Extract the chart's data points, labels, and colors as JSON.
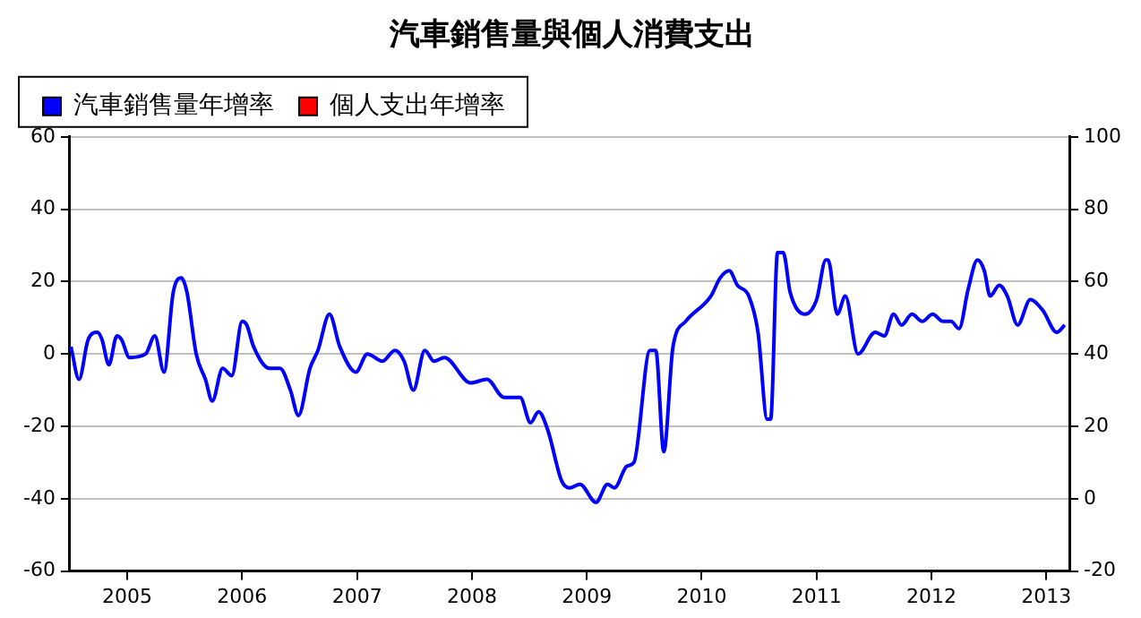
{
  "chart_data": {
    "type": "line",
    "title": "汽車銷售量與個人消費支出",
    "x": [
      2004.51,
      2004.58,
      2004.66,
      2004.74,
      2004.78,
      2004.84,
      2004.91,
      2004.95,
      2005.02,
      2005.16,
      2005.24,
      2005.32,
      2005.4,
      2005.47,
      2005.52,
      2005.6,
      2005.68,
      2005.74,
      2005.83,
      2005.91,
      2006.0,
      2006.04,
      2006.1,
      2006.24,
      2006.33,
      2006.42,
      2006.49,
      2006.59,
      2006.66,
      2006.76,
      2006.85,
      2006.99,
      2007.09,
      2007.22,
      2007.33,
      2007.41,
      2007.49,
      2007.59,
      2007.67,
      2007.76,
      2007.99,
      2008.13,
      2008.28,
      2008.42,
      2008.51,
      2008.58,
      2008.66,
      2008.78,
      2008.85,
      2008.94,
      2009.08,
      2009.18,
      2009.24,
      2009.35,
      2009.41,
      2009.55,
      2009.6,
      2009.67,
      2009.75,
      2009.86,
      2010.08,
      2010.16,
      2010.24,
      2010.31,
      2010.41,
      2010.49,
      2010.57,
      2010.6,
      2010.66,
      2010.71,
      2010.77,
      2010.9,
      2011.0,
      2011.08,
      2011.1,
      2011.18,
      2011.25,
      2011.36,
      2011.51,
      2011.59,
      2011.67,
      2011.74,
      2011.83,
      2011.92,
      2012.01,
      2012.1,
      2012.17,
      2012.24,
      2012.32,
      2012.4,
      2012.46,
      2012.51,
      2012.59,
      2012.66,
      2012.75,
      2012.86,
      2012.97,
      2013.09,
      2013.16
    ],
    "series": [
      {
        "name": "汽車銷售量年增率",
        "color": "#0000ff",
        "values": [
          2,
          -7,
          4,
          6,
          4,
          -3,
          5,
          4,
          -1,
          0,
          5,
          -5,
          17,
          21,
          17,
          0,
          -7,
          -13,
          -4,
          -6,
          9,
          8,
          2,
          -4,
          -4,
          -10,
          -17,
          -4,
          1,
          11,
          2,
          -5,
          0,
          -2,
          1,
          -2,
          -10,
          1,
          -2,
          -1,
          -8,
          -7,
          -12,
          -12,
          -19,
          -16,
          -21,
          -35,
          -37,
          -36,
          -41,
          -36,
          -37,
          -31,
          -30,
          1,
          1,
          -27,
          2,
          9,
          16,
          21,
          23,
          19,
          16,
          6,
          -18,
          -18,
          28,
          28,
          17,
          11,
          15,
          26,
          26,
          11,
          16,
          0,
          6,
          5,
          11,
          8,
          11,
          9,
          11,
          9,
          9,
          7,
          18,
          26,
          23,
          16,
          19,
          16,
          8,
          15,
          12,
          6,
          8
        ]
      },
      {
        "name": "個人支出年增率",
        "color": "#ff0000",
        "values": [
          null,
          null,
          null,
          null,
          null,
          null,
          null,
          null,
          null,
          null,
          null,
          null,
          null,
          null,
          null,
          null,
          null,
          null,
          null,
          null,
          null,
          null,
          null,
          null,
          null,
          null,
          null,
          null,
          null,
          null,
          null,
          null,
          null,
          null,
          null,
          null,
          null,
          null,
          null,
          null,
          null,
          null,
          null,
          null,
          null,
          null,
          null,
          null,
          null,
          null,
          null,
          null,
          null,
          null,
          null,
          null,
          null,
          null,
          null,
          null,
          null,
          null,
          null,
          null,
          null,
          null,
          null,
          null,
          null,
          null,
          null,
          null,
          null,
          null,
          null,
          null,
          null,
          null,
          null,
          null,
          null,
          null,
          null,
          null,
          null,
          null,
          null,
          null,
          null,
          null,
          null,
          null,
          null,
          null,
          null,
          null,
          null,
          null,
          null
        ]
      }
    ],
    "xlim": [
      2004.5,
      2013.2
    ],
    "xticks": [
      2005,
      2006,
      2007,
      2008,
      2009,
      2010,
      2011,
      2012,
      2013
    ],
    "ylim": [
      -60,
      60
    ],
    "yticks": [
      -60,
      -40,
      -20,
      0,
      20,
      40,
      60
    ],
    "y2lim": [
      -20,
      100
    ],
    "y2ticks": [
      -20,
      0,
      20,
      40,
      60,
      80,
      100
    ],
    "grid": "y",
    "legend": "top left",
    "marker": "none",
    "line_style": "solid"
  }
}
